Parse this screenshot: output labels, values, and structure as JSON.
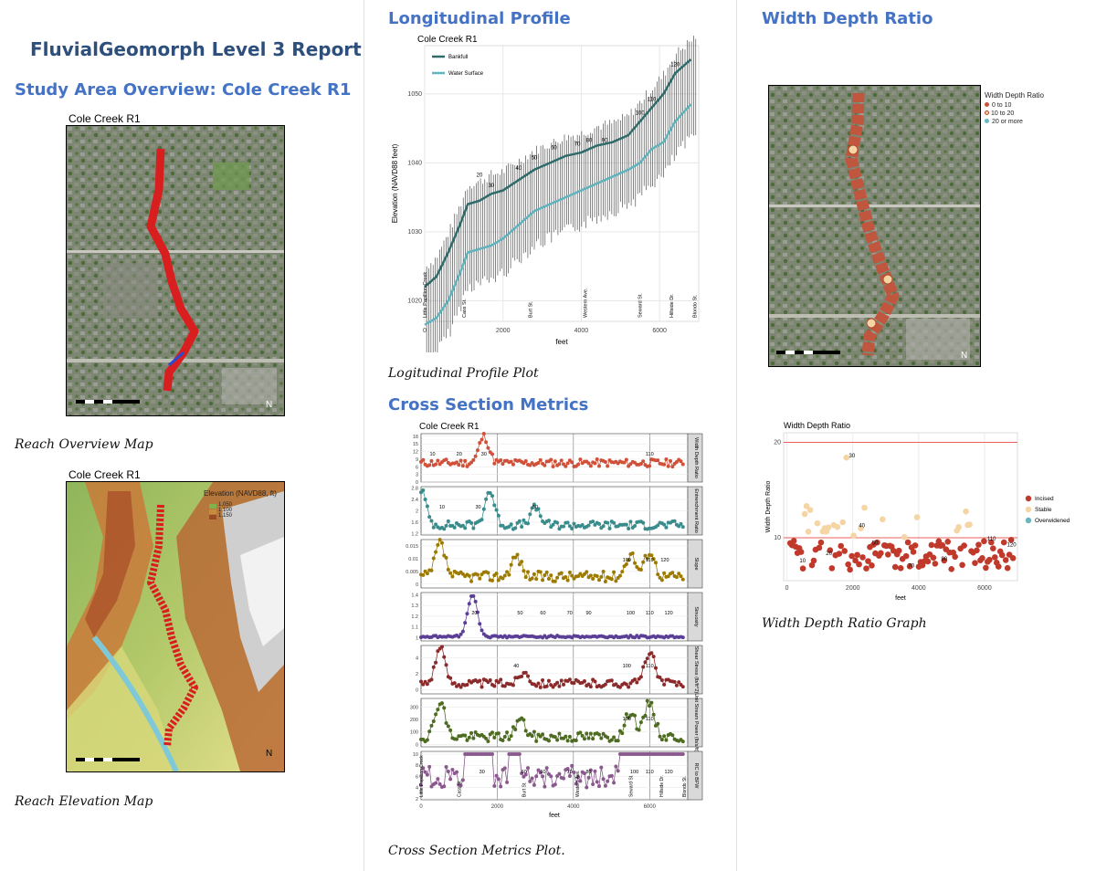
{
  "report": {
    "title": "FluvialGeomorph Level 3 Report",
    "study_area_heading": "Study Area Overview: Cole Creek R1",
    "long_profile_heading": "Longitudinal Profile",
    "cross_section_heading": "Cross Section Metrics",
    "wdr_heading": "Width Depth Ratio"
  },
  "colors": {
    "heading_dark": "#2e4f7c",
    "heading_blue": "#4472c4",
    "bankfull": "#2f6b6b",
    "water": "#5fb3bd",
    "incised": "#c0392b",
    "stable": "#f5d5a3",
    "overwidened": "#6bb7c0"
  },
  "overview_map": {
    "title": "Cole Creek R1",
    "caption": "Reach Overview Map"
  },
  "elevation_map": {
    "title": "Cole Creek R1",
    "caption": "Reach Elevation Map",
    "legend_title": "Elevation (NAVD88, ft)",
    "legend_items": [
      "1,050",
      "1,100",
      "1,150"
    ]
  },
  "long_profile": {
    "caption": "Logitudinal Profile Plot",
    "chart_data": {
      "type": "line",
      "title": "Cole Creek R1",
      "xlabel": "feet",
      "ylabel": "Elevation (NAVD88 feet)",
      "xlim": [
        0,
        7000
      ],
      "ylim": [
        1017,
        1057
      ],
      "xticks": [
        0,
        2000,
        4000,
        6000
      ],
      "yticks": [
        1020,
        1030,
        1040,
        1050
      ],
      "legend": [
        "Bankfull",
        "Water Surface"
      ],
      "series": [
        {
          "name": "Bankfull",
          "x": [
            0,
            300,
            600,
            900,
            1100,
            1400,
            1700,
            2000,
            2400,
            2800,
            3200,
            3600,
            4000,
            4400,
            4800,
            5200,
            5500,
            5800,
            6100,
            6400,
            6800
          ],
          "y": [
            1022,
            1023.5,
            1027,
            1031,
            1034,
            1034.5,
            1035.5,
            1036,
            1037.5,
            1039,
            1040,
            1041,
            1041.5,
            1042.5,
            1043,
            1044,
            1046,
            1048,
            1050,
            1053,
            1055
          ]
        },
        {
          "name": "Water Surface",
          "x": [
            0,
            300,
            600,
            900,
            1100,
            1400,
            1700,
            2000,
            2400,
            2800,
            3200,
            3600,
            4000,
            4400,
            4800,
            5200,
            5500,
            5800,
            6100,
            6400,
            6800
          ],
          "y": [
            1016.5,
            1017.5,
            1020,
            1024,
            1027,
            1027.5,
            1028,
            1029,
            1031,
            1033,
            1034,
            1035,
            1036,
            1037,
            1038,
            1039,
            1040,
            1042,
            1043,
            1046,
            1048.5
          ]
        }
      ],
      "station_labels": [
        {
          "x": 1400,
          "y": 1038,
          "text": "20"
        },
        {
          "x": 1700,
          "y": 1036.5,
          "text": "30"
        },
        {
          "x": 2400,
          "y": 1039,
          "text": "40"
        },
        {
          "x": 2800,
          "y": 1040.5,
          "text": "50"
        },
        {
          "x": 3300,
          "y": 1042,
          "text": "60"
        },
        {
          "x": 3900,
          "y": 1042.5,
          "text": "70"
        },
        {
          "x": 4200,
          "y": 1043,
          "text": "80"
        },
        {
          "x": 4600,
          "y": 1043,
          "text": "90"
        },
        {
          "x": 5500,
          "y": 1047,
          "text": "100"
        },
        {
          "x": 5800,
          "y": 1049,
          "text": "110"
        },
        {
          "x": 6400,
          "y": 1054,
          "text": "120"
        }
      ],
      "landmarks": [
        {
          "x": 0,
          "text": "Little Papillion Creek"
        },
        {
          "x": 1000,
          "text": "Cass St."
        },
        {
          "x": 2700,
          "text": "Burt St."
        },
        {
          "x": 4100,
          "text": "Western Ave."
        },
        {
          "x": 5500,
          "text": "Seward St."
        },
        {
          "x": 6300,
          "text": "Hillside Dr."
        },
        {
          "x": 6900,
          "text": "Blondo St."
        }
      ]
    }
  },
  "cross_section": {
    "caption": "Cross Section Metrics Plot.",
    "chart_data": {
      "type": "scatter",
      "title": "Cole Creek R1",
      "xlabel": "feet",
      "xlim": [
        0,
        7000
      ],
      "xticks": [
        0,
        2000,
        4000,
        6000
      ],
      "panels": [
        {
          "name": "Width Depth Ratio",
          "ticks": [
            0,
            3,
            6,
            9,
            12,
            15,
            18
          ],
          "ylim": [
            0,
            19
          ],
          "color": "#d0503a",
          "base": 7.5,
          "amp": 1.5,
          "peaks": [
            {
              "x": 1650,
              "y": 18
            }
          ],
          "labels": [
            {
              "x": 1650,
              "text": "30"
            },
            {
              "x": 1000,
              "text": "20"
            },
            {
              "x": 300,
              "text": "10"
            },
            {
              "x": 6000,
              "text": "110"
            }
          ]
        },
        {
          "name": "Entrenchment Ratio",
          "ticks": [
            1.2,
            1.6,
            2.0,
            2.4,
            2.8
          ],
          "ylim": [
            1.15,
            2.85
          ],
          "color": "#3a8c8c",
          "base": 1.5,
          "amp": 0.15,
          "peaks": [
            {
              "x": 0,
              "y": 2.75
            },
            {
              "x": 1800,
              "y": 2.7
            },
            {
              "x": 3000,
              "y": 2.1
            }
          ],
          "labels": [
            {
              "x": 550,
              "text": "10"
            },
            {
              "x": 3000,
              "text": "50"
            },
            {
              "x": 1500,
              "text": "30"
            }
          ]
        },
        {
          "name": "Slope",
          "ticks": [
            0,
            0.005,
            0.01,
            0.015
          ],
          "ylim": [
            -0.0015,
            0.0175
          ],
          "color": "#9c7a00",
          "base": 0.003,
          "amp": 0.002,
          "peaks": [
            {
              "x": 500,
              "y": 0.016
            },
            {
              "x": 2500,
              "y": 0.011
            },
            {
              "x": 5500,
              "y": 0.012
            },
            {
              "x": 6000,
              "y": 0.013
            }
          ],
          "labels": [
            {
              "x": 5400,
              "text": "100"
            },
            {
              "x": 6000,
              "text": "110"
            },
            {
              "x": 6400,
              "text": "120"
            }
          ]
        },
        {
          "name": "Sinuosity",
          "ticks": [
            1.0,
            1.1,
            1.2,
            1.3,
            1.4
          ],
          "ylim": [
            0.97,
            1.42
          ],
          "color": "#5b3f96",
          "base": 1.01,
          "amp": 0.01,
          "peaks": [
            {
              "x": 1350,
              "y": 1.4
            }
          ],
          "labels": [
            {
              "x": 1400,
              "text": "20"
            },
            {
              "x": 2600,
              "text": "50"
            },
            {
              "x": 3200,
              "text": "60"
            },
            {
              "x": 3900,
              "text": "70"
            },
            {
              "x": 4400,
              "text": "90"
            },
            {
              "x": 5500,
              "text": "100"
            },
            {
              "x": 6000,
              "text": "110"
            },
            {
              "x": 6500,
              "text": "120"
            }
          ]
        },
        {
          "name": "Shear Stress (lb/ft^2)",
          "ticks": [
            0,
            2,
            4
          ],
          "ylim": [
            -0.5,
            5.5
          ],
          "color": "#8b2a2a",
          "base": 0.8,
          "amp": 0.5,
          "peaks": [
            {
              "x": 500,
              "y": 5.2
            },
            {
              "x": 2700,
              "y": 2.2
            },
            {
              "x": 6000,
              "y": 4.8
            }
          ],
          "labels": [
            {
              "x": 5400,
              "text": "100"
            },
            {
              "x": 6000,
              "text": "110"
            },
            {
              "x": 2500,
              "text": "40"
            }
          ]
        },
        {
          "name": "Unit Stream Power (lb/s/ft)",
          "ticks": [
            0,
            100,
            200,
            300
          ],
          "ylim": [
            -20,
            370
          ],
          "color": "#4e6b22",
          "base": 60,
          "amp": 40,
          "peaks": [
            {
              "x": 500,
              "y": 350
            },
            {
              "x": 2600,
              "y": 200
            },
            {
              "x": 5500,
              "y": 270
            },
            {
              "x": 6000,
              "y": 340
            }
          ],
          "labels": [
            {
              "x": 5400,
              "text": "100"
            },
            {
              "x": 6000,
              "text": "110"
            }
          ]
        },
        {
          "name": "RC to BFW",
          "ticks": [
            2,
            4,
            6,
            8,
            10
          ],
          "ylim": [
            1.8,
            10.5
          ],
          "color": "#8a5a8e",
          "base": 6,
          "amp": 2,
          "peaks": [],
          "labels": [
            {
              "x": 1600,
              "text": "30"
            },
            {
              "x": 2700,
              "text": "60"
            },
            {
              "x": 3200,
              "text": "60"
            },
            {
              "x": 3900,
              "text": "70"
            },
            {
              "x": 4400,
              "text": "80"
            },
            {
              "x": 5600,
              "text": "100"
            },
            {
              "x": 6000,
              "text": "110"
            },
            {
              "x": 6500,
              "text": "120"
            }
          ]
        }
      ],
      "landmarks": [
        {
          "x": 0,
          "text": "Little Papillion Creek"
        },
        {
          "x": 1000,
          "text": "Cass St."
        },
        {
          "x": 2700,
          "text": "Burt St."
        },
        {
          "x": 4100,
          "text": "Western Ave."
        },
        {
          "x": 5500,
          "text": "Seward St."
        },
        {
          "x": 6300,
          "text": "Hillside Dr."
        },
        {
          "x": 6900,
          "text": "Blondo St."
        }
      ]
    }
  },
  "wdr_map": {
    "legend_title": "Width Depth Ratio",
    "legend_items": [
      "0 to 10",
      "10 to 20",
      "20 or more"
    ]
  },
  "wdr_graph": {
    "caption": "Width Depth Ratio Graph",
    "chart_data": {
      "type": "scatter",
      "title": "Width Depth Ratio",
      "xlabel": "feet",
      "ylabel": "Width Depth Ratio",
      "xlim": [
        -100,
        7000
      ],
      "ylim": [
        5.5,
        21
      ],
      "xticks": [
        0,
        2000,
        4000,
        6000
      ],
      "yticks": [
        10,
        20
      ],
      "thresholds": [
        10,
        20
      ],
      "legend": [
        "Incised",
        "Stable",
        "Overwidened"
      ],
      "labels": [
        {
          "x": 1800,
          "y": 18.4,
          "text": "30"
        },
        {
          "x": 2100,
          "y": 11.1,
          "text": "40"
        },
        {
          "x": 2500,
          "y": 9.3,
          "text": "50"
        },
        {
          "x": 300,
          "y": 7.4,
          "text": "10"
        },
        {
          "x": 1100,
          "y": 8.2,
          "text": "20"
        },
        {
          "x": 3600,
          "y": 6.9,
          "text": "70"
        },
        {
          "x": 4600,
          "y": 7.6,
          "text": "90"
        },
        {
          "x": 6000,
          "y": 9.7,
          "text": "110"
        },
        {
          "x": 6600,
          "y": 9.1,
          "text": "120"
        }
      ]
    }
  }
}
